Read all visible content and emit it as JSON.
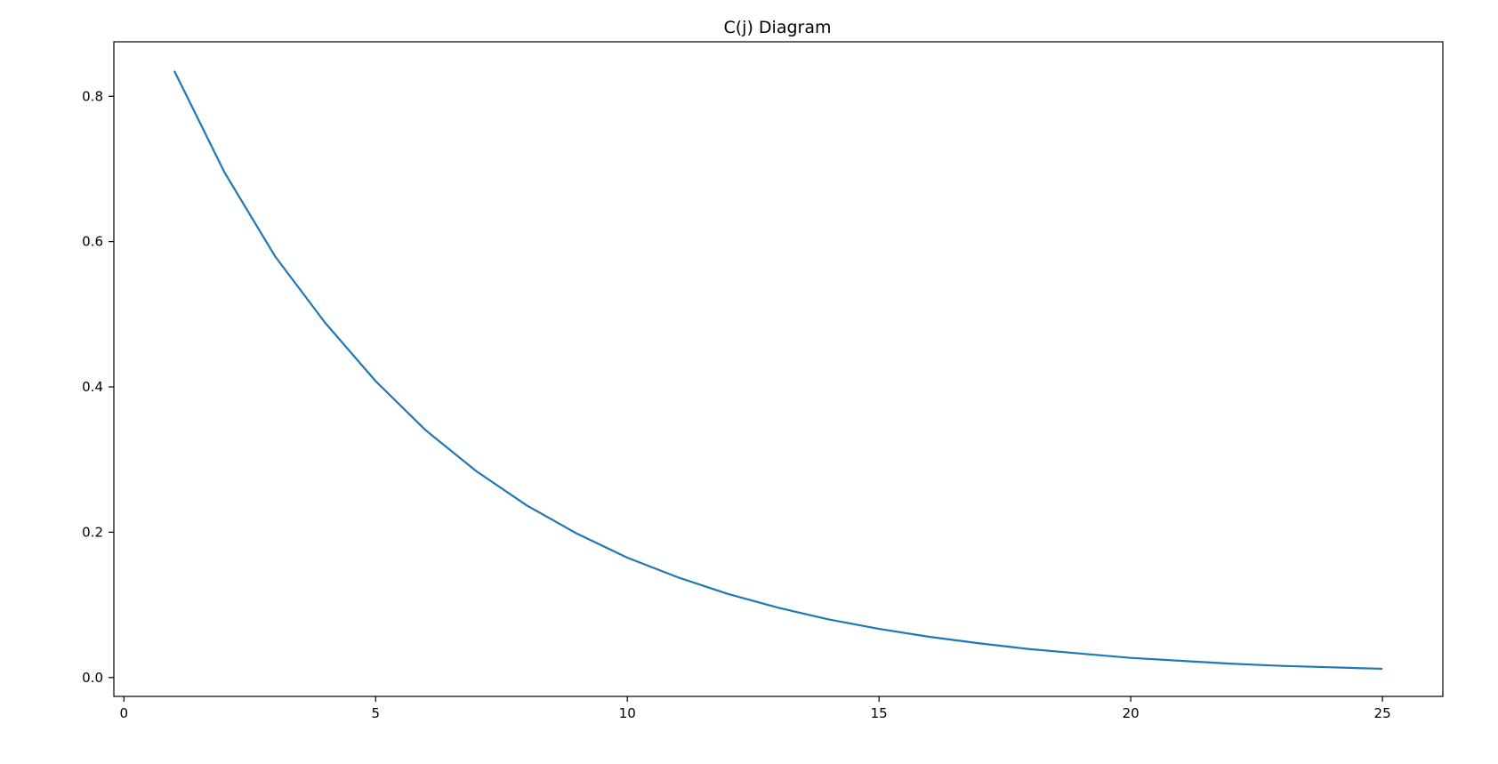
{
  "chart_data": {
    "type": "line",
    "title": "C(j) Diagram",
    "xlabel": "",
    "ylabel": "",
    "xlim": [
      -0.2,
      26.2
    ],
    "ylim": [
      -0.026,
      0.875
    ],
    "xticks": [
      0,
      5,
      10,
      15,
      20,
      25
    ],
    "xtick_labels": [
      "0",
      "5",
      "10",
      "15",
      "20",
      "25"
    ],
    "yticks": [
      0.0,
      0.2,
      0.4,
      0.6,
      0.8
    ],
    "ytick_labels": [
      "0.0",
      "0.2",
      "0.4",
      "0.6",
      "0.8"
    ],
    "grid": false,
    "legend": "none",
    "series": [
      {
        "color": "#1f77b4",
        "x": [
          1,
          2,
          3,
          4,
          5,
          6,
          7,
          8,
          9,
          10,
          11,
          12,
          13,
          14,
          15,
          16,
          17,
          18,
          19,
          20,
          21,
          22,
          23,
          24,
          25
        ],
        "y": [
          0.835,
          0.695,
          0.58,
          0.488,
          0.408,
          0.34,
          0.284,
          0.237,
          0.198,
          0.165,
          0.138,
          0.115,
          0.096,
          0.08,
          0.067,
          0.056,
          0.047,
          0.039,
          0.033,
          0.027,
          0.023,
          0.019,
          0.016,
          0.014,
          0.012
        ]
      }
    ]
  }
}
